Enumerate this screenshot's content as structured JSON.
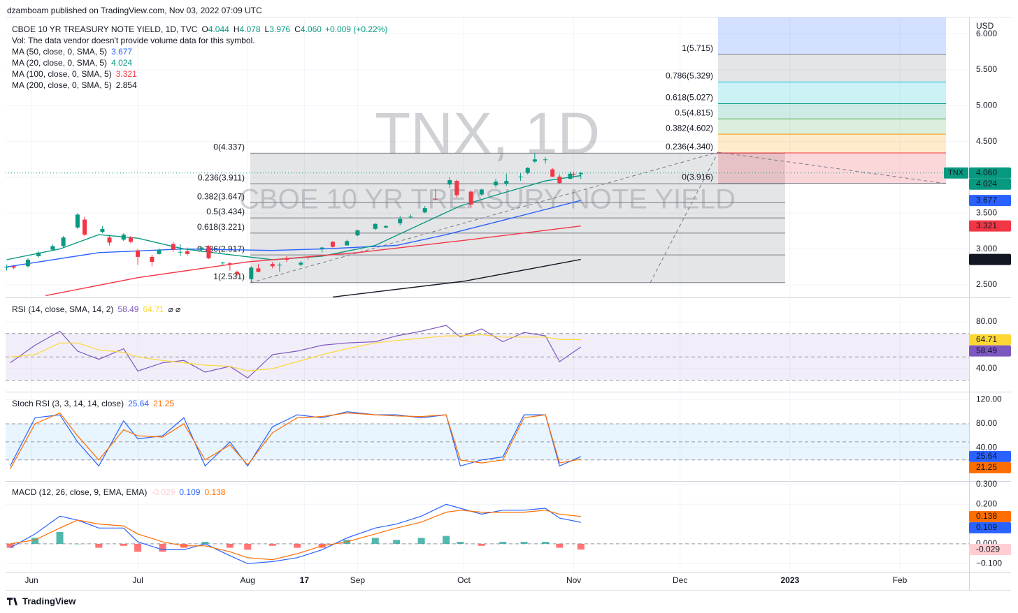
{
  "header": {
    "published": "dzamboam published on TradingView.com, Nov 03, 2022 07:09 UTC",
    "currency": "USD",
    "footer": "TradingView"
  },
  "chart_data": [
    {
      "type": "candlestick",
      "title": "CBOE 10 YR TREASURY NOTE YIELD, 1D, TVC",
      "symbol": "TNX",
      "watermark": "TNX, 1D",
      "watermark_subtitle": "CBOE 10 YR TREASURY NOTE YIELD",
      "ohlc_legend": [
        {
          "key": "O",
          "value": "4.044"
        },
        {
          "key": "H",
          "value": "4.078"
        },
        {
          "key": "L",
          "value": "3.976"
        },
        {
          "key": "C",
          "value": "4.060"
        }
      ],
      "change": "+0.009 (+0.22%)",
      "note": "Vol: The data vendor doesn't provide volume data for this symbol.",
      "up_color": "#089981",
      "down_color": "#f23645",
      "x": [
        "2022-05-25",
        "2022-05-27",
        "2022-05-31",
        "2022-06-03",
        "2022-06-07",
        "2022-06-10",
        "2022-06-14",
        "2022-06-16",
        "2022-06-21",
        "2022-06-23",
        "2022-06-27",
        "2022-06-29",
        "2022-07-01",
        "2022-07-05",
        "2022-07-07",
        "2022-07-11",
        "2022-07-13",
        "2022-07-15",
        "2022-07-19",
        "2022-07-21",
        "2022-07-25",
        "2022-07-27",
        "2022-07-29",
        "2022-08-02",
        "2022-08-04",
        "2022-08-08",
        "2022-08-10",
        "2022-08-12",
        "2022-08-16",
        "2022-08-18",
        "2022-08-22",
        "2022-08-25",
        "2022-08-29",
        "2022-09-01",
        "2022-09-06",
        "2022-09-09",
        "2022-09-13",
        "2022-09-16",
        "2022-09-20",
        "2022-09-23",
        "2022-09-27",
        "2022-09-29",
        "2022-10-03",
        "2022-10-06",
        "2022-10-10",
        "2022-10-13",
        "2022-10-17",
        "2022-10-19",
        "2022-10-21",
        "2022-10-24",
        "2022-10-26",
        "2022-10-28",
        "2022-10-31",
        "2022-11-01",
        "2022-11-03"
      ],
      "open": [
        2.74,
        2.76,
        2.76,
        2.9,
        2.99,
        3.04,
        3.3,
        3.41,
        3.24,
        3.16,
        3.13,
        3.16,
        2.98,
        2.89,
        2.93,
        3.07,
        2.96,
        2.97,
        2.99,
        3.03,
        2.81,
        2.8,
        2.68,
        2.58,
        2.73,
        2.79,
        2.77,
        2.87,
        2.78,
        2.89,
        3.0,
        3.1,
        3.05,
        3.19,
        3.28,
        3.3,
        3.36,
        3.45,
        3.51,
        3.7,
        3.9,
        3.95,
        3.8,
        3.76,
        3.89,
        3.91,
        4.0,
        4.06,
        4.22,
        4.25,
        4.11,
        4.01,
        3.98,
        4.05,
        4.044
      ],
      "high": [
        2.78,
        2.78,
        2.87,
        2.97,
        3.06,
        3.18,
        3.5,
        3.45,
        3.32,
        3.2,
        3.22,
        3.18,
        3.0,
        2.92,
        3.01,
        3.1,
        3.07,
        3.02,
        3.03,
        3.05,
        2.82,
        2.82,
        2.7,
        2.76,
        2.79,
        2.82,
        2.81,
        2.9,
        2.83,
        2.9,
        3.03,
        3.11,
        3.13,
        3.27,
        3.36,
        3.33,
        3.46,
        3.48,
        3.6,
        3.83,
        4.0,
        3.97,
        3.82,
        3.84,
        3.98,
        4.05,
        4.06,
        4.14,
        4.337,
        4.28,
        4.13,
        4.04,
        4.08,
        4.08,
        4.078
      ],
      "low": [
        2.7,
        2.72,
        2.74,
        2.88,
        2.97,
        3.02,
        3.28,
        3.18,
        3.22,
        3.05,
        3.11,
        3.08,
        2.78,
        2.76,
        2.92,
        2.96,
        2.9,
        2.91,
        2.96,
        2.86,
        2.78,
        2.7,
        2.62,
        2.531,
        2.68,
        2.73,
        2.68,
        2.82,
        2.76,
        2.85,
        2.95,
        3.02,
        3.05,
        3.18,
        3.26,
        3.29,
        3.33,
        3.43,
        3.5,
        3.68,
        3.85,
        3.72,
        3.57,
        3.74,
        3.86,
        3.88,
        3.95,
        4.04,
        4.2,
        4.19,
        4.0,
        3.91,
        3.97,
        3.99,
        3.976
      ],
      "close": [
        2.75,
        2.74,
        2.85,
        2.95,
        3.04,
        3.16,
        3.48,
        3.2,
        3.28,
        3.09,
        3.2,
        3.1,
        2.89,
        2.82,
        2.99,
        2.99,
        2.96,
        2.93,
        3.02,
        2.87,
        2.81,
        2.78,
        2.65,
        2.74,
        2.68,
        2.76,
        2.78,
        2.85,
        2.81,
        2.88,
        3.02,
        3.03,
        3.11,
        3.26,
        3.35,
        3.32,
        3.42,
        3.45,
        3.57,
        3.69,
        3.96,
        3.75,
        3.62,
        3.83,
        3.94,
        3.95,
        4.01,
        4.13,
        4.25,
        4.25,
        4.01,
        3.92,
        4.05,
        4.04,
        4.06
      ],
      "ylim": [
        2.334,
        6.23
      ],
      "yticks": [
        {
          "value": 2.5,
          "label": "2.500"
        },
        {
          "value": 3.0,
          "label": "3.000"
        },
        {
          "value": 3.5,
          "label": "3.500"
        },
        {
          "value": 4.0,
          "label": "4.000"
        },
        {
          "value": 4.5,
          "label": "4.500"
        },
        {
          "value": 5.0,
          "label": "5.000"
        },
        {
          "value": 5.5,
          "label": "5.500"
        },
        {
          "value": 6.0,
          "label": "6.000"
        }
      ],
      "series": [
        {
          "name": "MA (50, close, 0, SMA, 5)",
          "color": "#2962ff",
          "x": [
            "2022-05-25",
            "2022-06-20",
            "2022-07-14",
            "2022-08-08",
            "2022-08-22",
            "2022-09-12",
            "2022-09-26",
            "2022-10-12",
            "2022-11-03"
          ],
          "values": [
            2.75,
            2.95,
            3.0,
            2.98,
            3.0,
            3.05,
            3.2,
            3.4,
            3.677
          ]
        },
        {
          "name": "MA (20, close, 0, SMA, 5)",
          "color": "#089981",
          "x": [
            "2022-05-25",
            "2022-06-09",
            "2022-06-20",
            "2022-07-01",
            "2022-07-14",
            "2022-07-27",
            "2022-08-08",
            "2022-08-22",
            "2022-09-06",
            "2022-09-19",
            "2022-09-30",
            "2022-10-12",
            "2022-10-24",
            "2022-11-03"
          ],
          "values": [
            2.85,
            3.0,
            3.2,
            3.15,
            3.0,
            2.92,
            2.85,
            2.9,
            3.05,
            3.35,
            3.6,
            3.78,
            3.95,
            4.024
          ]
        },
        {
          "name": "MA (100, close, 0, SMA, 5)",
          "color": "#f23645",
          "x": [
            "2022-06-05",
            "2022-07-01",
            "2022-08-01",
            "2022-09-01",
            "2022-10-01",
            "2022-11-03"
          ],
          "values": [
            2.35,
            2.6,
            2.82,
            2.95,
            3.12,
            3.321
          ]
        },
        {
          "name": "MA (200, close, 0, SMA, 5)",
          "color": "#131722",
          "x": [
            "2022-08-25",
            "2022-10-01",
            "2022-11-03"
          ],
          "values": [
            2.33,
            2.55,
            2.854
          ]
        }
      ],
      "fib_retracement": [
        {
          "label": "0(4.337)",
          "value": 4.337
        },
        {
          "label": "0.236(3.911)",
          "value": 3.911
        },
        {
          "label": "0.382(3.647)",
          "value": 3.647
        },
        {
          "label": "0.5(3.434)",
          "value": 3.434
        },
        {
          "label": "0.618(3.221)",
          "value": 3.221
        },
        {
          "label": "0.786(2.917)",
          "value": 2.917
        },
        {
          "label": "1(2.531)",
          "value": 2.531
        }
      ],
      "fib_extension": [
        {
          "label": "1(5.715)",
          "value": 5.715,
          "color": "#787b86"
        },
        {
          "label": "0.786(5.329)",
          "value": 5.329,
          "color": "#00bcd4"
        },
        {
          "label": "0.618(5.027)",
          "value": 5.027,
          "color": "#089981"
        },
        {
          "label": "0.5(4.815)",
          "value": 4.815,
          "color": "#4caf50"
        },
        {
          "label": "0.382(4.602)",
          "value": 4.602,
          "color": "#ff9800"
        },
        {
          "label": "0.236(4.340)",
          "value": 4.34,
          "color": "#f23645"
        },
        {
          "label": "0(3.916)",
          "value": 3.916,
          "color": "#787b86"
        }
      ]
    },
    {
      "type": "line",
      "title": "RSI (14, close, SMA, 14, 2)",
      "legend_extra": "⌀ ⌀",
      "ylim": [
        20.9,
        99.7
      ],
      "yticks": [
        {
          "value": 40,
          "label": "40.00"
        },
        {
          "value": 80,
          "label": "80.00"
        }
      ],
      "bands": [
        30,
        50,
        70
      ],
      "band_color": "rgba(126,87,194,0.1)",
      "x": [
        "2022-05-26",
        "2022-06-02",
        "2022-06-09",
        "2022-06-14",
        "2022-06-20",
        "2022-06-27",
        "2022-07-01",
        "2022-07-08",
        "2022-07-14",
        "2022-07-20",
        "2022-07-27",
        "2022-08-01",
        "2022-08-08",
        "2022-08-15",
        "2022-08-22",
        "2022-08-29",
        "2022-09-06",
        "2022-09-12",
        "2022-09-19",
        "2022-09-26",
        "2022-09-30",
        "2022-10-06",
        "2022-10-12",
        "2022-10-18",
        "2022-10-24",
        "2022-10-28",
        "2022-11-03"
      ],
      "series": [
        {
          "color": "#7e57c2",
          "values": [
            45,
            60,
            72,
            55,
            48,
            57,
            38,
            45,
            47,
            37,
            42,
            32,
            52,
            55,
            60,
            62,
            63,
            68,
            72,
            77,
            67,
            74,
            63,
            71,
            68,
            46,
            58.49
          ]
        },
        {
          "color": "#fdd835",
          "values": [
            50,
            52,
            62,
            62,
            56,
            54,
            50,
            47,
            45,
            43,
            42,
            38,
            40,
            46,
            52,
            57,
            62,
            64,
            66,
            68,
            68,
            69,
            67,
            67,
            67,
            65,
            64.71
          ]
        }
      ]
    },
    {
      "type": "line",
      "title": "Stoch RSI (3, 3, 14, 14, close)",
      "ylim": [
        -13.9,
        131
      ],
      "yticks": [
        {
          "value": 40,
          "label": "40.00"
        },
        {
          "value": 80,
          "label": "80.00"
        },
        {
          "value": 120,
          "label": "120.00"
        }
      ],
      "bands": [
        20,
        50,
        80
      ],
      "band_color": "rgba(33,150,243,0.1)",
      "x": [
        "2022-05-26",
        "2022-06-02",
        "2022-06-09",
        "2022-06-14",
        "2022-06-20",
        "2022-06-27",
        "2022-07-01",
        "2022-07-08",
        "2022-07-14",
        "2022-07-20",
        "2022-07-27",
        "2022-08-01",
        "2022-08-08",
        "2022-08-15",
        "2022-08-22",
        "2022-08-29",
        "2022-09-06",
        "2022-09-12",
        "2022-09-19",
        "2022-09-26",
        "2022-09-30",
        "2022-10-06",
        "2022-10-12",
        "2022-10-18",
        "2022-10-24",
        "2022-10-28",
        "2022-11-03"
      ],
      "series": [
        {
          "color": "#2962ff",
          "values": [
            10,
            90,
            95,
            50,
            10,
            85,
            55,
            60,
            90,
            10,
            50,
            10,
            75,
            95,
            90,
            100,
            95,
            95,
            90,
            95,
            10,
            20,
            25,
            95,
            95,
            10,
            25.64
          ]
        },
        {
          "color": "#ff6d00",
          "values": [
            5,
            80,
            98,
            60,
            20,
            70,
            60,
            58,
            80,
            20,
            45,
            12,
            65,
            90,
            92,
            98,
            95,
            93,
            92,
            95,
            20,
            15,
            20,
            90,
            95,
            15,
            21.25
          ]
        }
      ]
    },
    {
      "type": "line",
      "title": "MACD (12, 26, close, 9, EMA, EMA)",
      "ylim": [
        -0.145,
        0.314
      ],
      "yticks": [
        {
          "value": -0.1,
          "label": "−0.100"
        },
        {
          "value": 0,
          "label": "0.000"
        },
        {
          "value": 0.2,
          "label": "0.200"
        },
        {
          "value": 0.3,
          "label": "0.300"
        }
      ],
      "bands": [
        0
      ],
      "x": [
        "2022-05-26",
        "2022-06-02",
        "2022-06-09",
        "2022-06-14",
        "2022-06-20",
        "2022-06-27",
        "2022-07-01",
        "2022-07-08",
        "2022-07-14",
        "2022-07-20",
        "2022-07-27",
        "2022-08-01",
        "2022-08-08",
        "2022-08-15",
        "2022-08-22",
        "2022-08-29",
        "2022-09-06",
        "2022-09-12",
        "2022-09-19",
        "2022-09-26",
        "2022-09-30",
        "2022-10-06",
        "2022-10-12",
        "2022-10-18",
        "2022-10-24",
        "2022-10-28",
        "2022-11-03"
      ],
      "histogram": {
        "up_color": "#26a69a",
        "down_color": "#ff5252",
        "legend_color": "#ffcdd2",
        "values": [
          -0.02,
          0.03,
          0.06,
          0.0,
          -0.02,
          -0.01,
          -0.04,
          -0.04,
          -0.02,
          0.01,
          -0.02,
          -0.03,
          -0.01,
          -0.02,
          -0.02,
          0.02,
          0.03,
          0.02,
          0.03,
          0.04,
          0.01,
          -0.01,
          0.01,
          0.01,
          0.01,
          -0.02,
          -0.029
        ]
      },
      "series": [
        {
          "color": "#2962ff",
          "values": [
            -0.02,
            0.05,
            0.14,
            0.12,
            0.08,
            0.08,
            0.01,
            -0.03,
            -0.03,
            0.0,
            -0.06,
            -0.1,
            -0.09,
            -0.07,
            -0.03,
            0.03,
            0.08,
            0.1,
            0.14,
            0.2,
            0.18,
            0.15,
            0.17,
            0.17,
            0.18,
            0.13,
            0.109
          ]
        },
        {
          "color": "#ff6d00",
          "values": [
            0.0,
            0.02,
            0.08,
            0.12,
            0.1,
            0.09,
            0.05,
            0.01,
            -0.01,
            -0.01,
            -0.04,
            -0.07,
            -0.08,
            -0.05,
            -0.01,
            0.01,
            0.05,
            0.08,
            0.11,
            0.16,
            0.17,
            0.16,
            0.16,
            0.16,
            0.17,
            0.15,
            0.138
          ]
        }
      ],
      "xticks": [
        {
          "value": "2022-06-01",
          "label": "Jun"
        },
        {
          "value": "2022-07-01",
          "label": "Jul"
        },
        {
          "value": "2022-08-01",
          "label": "Aug"
        },
        {
          "value": "2022-08-17",
          "label": "17"
        },
        {
          "value": "2022-09-01",
          "label": "Sep"
        },
        {
          "value": "2022-10-01",
          "label": "Oct"
        },
        {
          "value": "2022-11-01",
          "label": "Nov"
        },
        {
          "value": "2022-12-01",
          "label": "Dec"
        },
        {
          "value": "2023-01-01",
          "label": "2023"
        },
        {
          "value": "2023-02-01",
          "label": "Feb"
        }
      ]
    }
  ]
}
